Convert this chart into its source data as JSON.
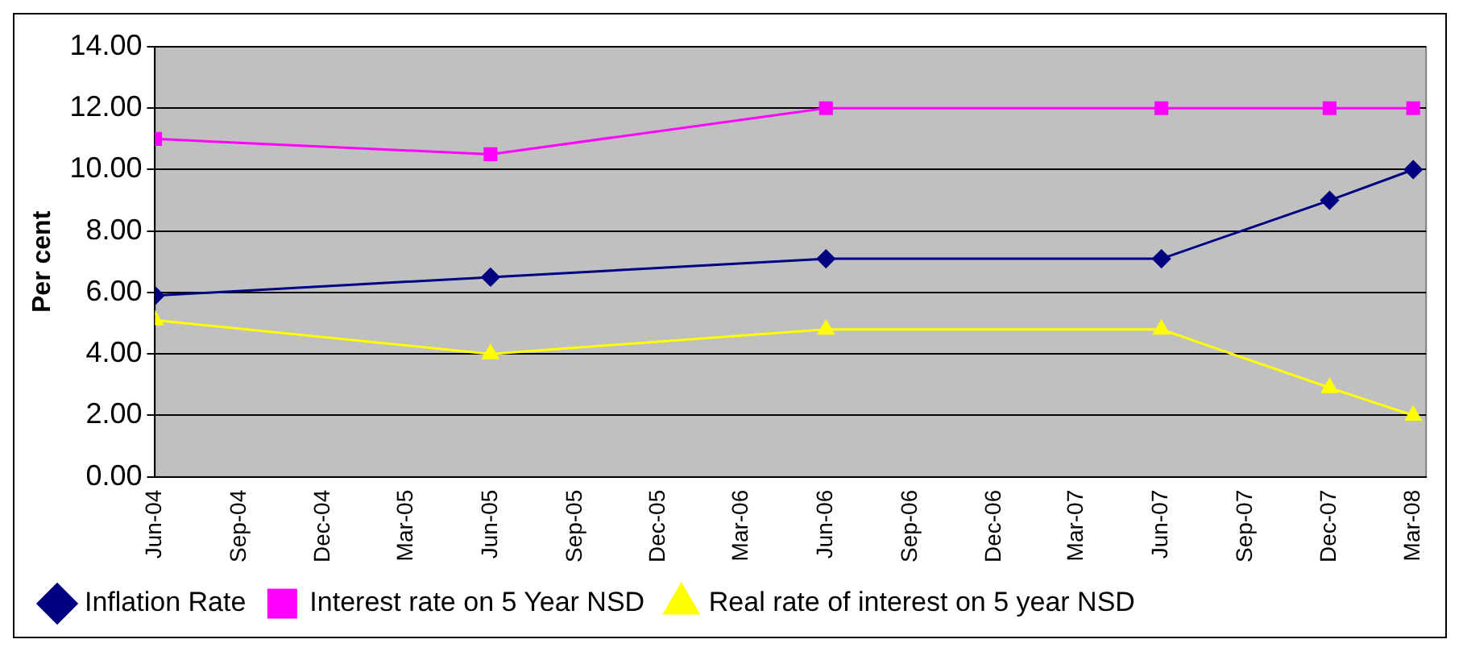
{
  "chart_data": {
    "type": "line",
    "ylabel": "Per cent",
    "x": [
      "2004-06",
      "2005-06",
      "2006-06",
      "2007-06",
      "2007-12",
      "2008-03"
    ],
    "series": [
      {
        "name": "Inflation Rate",
        "color": "#000080",
        "marker": "diamond",
        "values": [
          5.9,
          6.5,
          7.1,
          7.1,
          9.0,
          10.0
        ]
      },
      {
        "name": "Interest rate on 5 Year NSD",
        "color": "#ff00ff",
        "marker": "square",
        "values": [
          11.0,
          10.5,
          12.0,
          12.0,
          12.0,
          12.0
        ]
      },
      {
        "name": "Real rate of interest on 5 year NSD",
        "color": "#ffff00",
        "marker": "triangle",
        "values": [
          5.1,
          4.0,
          4.8,
          4.8,
          2.9,
          2.0
        ]
      }
    ],
    "xlim": [
      "2004-06",
      "2008-03-15"
    ],
    "xticks": [
      {
        "value": "2004-06",
        "label": "Jun-04"
      },
      {
        "value": "2004-09",
        "label": "Sep-04"
      },
      {
        "value": "2004-12",
        "label": "Dec-04"
      },
      {
        "value": "2005-03",
        "label": "Mar-05"
      },
      {
        "value": "2005-06",
        "label": "Jun-05"
      },
      {
        "value": "2005-09",
        "label": "Sep-05"
      },
      {
        "value": "2005-12",
        "label": "Dec-05"
      },
      {
        "value": "2006-03",
        "label": "Mar-06"
      },
      {
        "value": "2006-06",
        "label": "Jun-06"
      },
      {
        "value": "2006-09",
        "label": "Sep-06"
      },
      {
        "value": "2006-12",
        "label": "Dec-06"
      },
      {
        "value": "2007-03",
        "label": "Mar-07"
      },
      {
        "value": "2007-06",
        "label": "Jun-07"
      },
      {
        "value": "2007-09",
        "label": "Sep-07"
      },
      {
        "value": "2007-12",
        "label": "Dec-07"
      },
      {
        "value": "2008-03",
        "label": "Mar-08"
      }
    ],
    "ylim": [
      0,
      14
    ],
    "yticks": [
      {
        "value": 0,
        "label": "0.00"
      },
      {
        "value": 2,
        "label": "2.00"
      },
      {
        "value": 4,
        "label": "4.00"
      },
      {
        "value": 6,
        "label": "6.00"
      },
      {
        "value": 8,
        "label": "8.00"
      },
      {
        "value": 10,
        "label": "10.00"
      },
      {
        "value": 12,
        "label": "12.00"
      },
      {
        "value": 14,
        "label": "14.00"
      }
    ],
    "grid": "y",
    "legend": "bottom",
    "line_style": "solid"
  }
}
